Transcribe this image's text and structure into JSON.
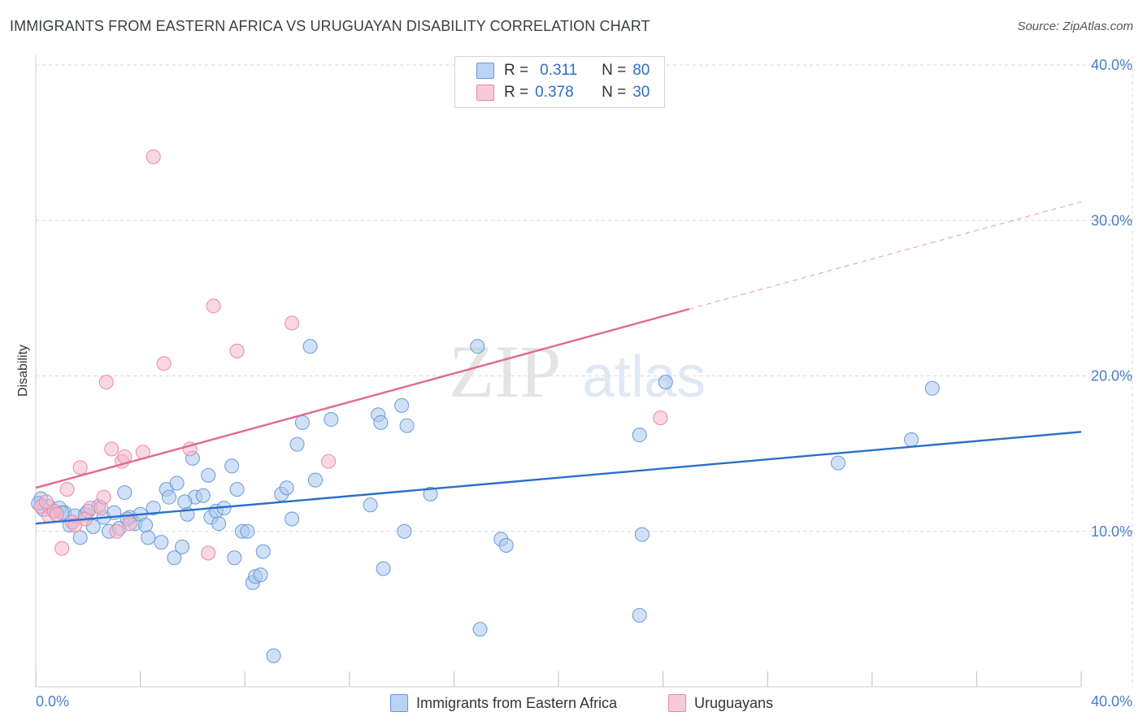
{
  "header": {
    "title": "IMMIGRANTS FROM EASTERN AFRICA VS URUGUAYAN DISABILITY CORRELATION CHART",
    "source": "Source: ZipAtlas.com"
  },
  "watermark": {
    "zip": "ZIP",
    "atlas": "atlas"
  },
  "legend": {
    "r_label": "R =",
    "n_label": "N =",
    "series": [
      {
        "r": "0.311",
        "n": "80"
      },
      {
        "r": "0.378",
        "n": "30"
      }
    ]
  },
  "bottom_legend": {
    "items": [
      "Immigrants from Eastern Africa",
      "Uruguayans"
    ]
  },
  "colors": {
    "blue_fill": "#a9c8f0",
    "blue_stroke": "#6a9ad8",
    "blue_line": "#2a6fcc",
    "pink_fill": "#f5b8ca",
    "pink_stroke": "#e888a6",
    "pink_line": "#e06a90",
    "tick_text": "#4a7fc8",
    "grid": "#d8d8d8"
  },
  "chart_data": {
    "type": "scatter",
    "title": "IMMIGRANTS FROM EASTERN AFRICA VS URUGUAYAN DISABILITY CORRELATION CHART",
    "xlabel": "",
    "ylabel": "Disability",
    "xlim": [
      0,
      40
    ],
    "ylim": [
      0,
      40
    ],
    "x_tick_labels": [
      "0.0%",
      "40.0%"
    ],
    "y_ticks": [
      10,
      20,
      30,
      40
    ],
    "y_tick_labels": [
      "10.0%",
      "20.0%",
      "30.0%",
      "40.0%"
    ],
    "series": [
      {
        "name": "Immigrants from Eastern Africa",
        "color": "blue",
        "r": 0.311,
        "n": 80,
        "trend": {
          "x": [
            0,
            40
          ],
          "y": [
            10.5,
            16.4
          ],
          "dashed_from": null
        },
        "points": [
          [
            0.2,
            12.1
          ],
          [
            0.5,
            11.6
          ],
          [
            0.7,
            11.3
          ],
          [
            0.9,
            11.5
          ],
          [
            1.1,
            11.2
          ],
          [
            1.3,
            10.4
          ],
          [
            1.5,
            11.0
          ],
          [
            1.7,
            9.6
          ],
          [
            1.9,
            11.1
          ],
          [
            2.2,
            10.3
          ],
          [
            2.4,
            11.6
          ],
          [
            2.6,
            10.9
          ],
          [
            2.8,
            10.0
          ],
          [
            3.0,
            11.2
          ],
          [
            3.2,
            10.2
          ],
          [
            3.4,
            12.5
          ],
          [
            3.6,
            10.9
          ],
          [
            3.8,
            10.5
          ],
          [
            4.0,
            11.1
          ],
          [
            4.2,
            10.4
          ],
          [
            4.3,
            9.6
          ],
          [
            4.5,
            11.5
          ],
          [
            4.8,
            9.3
          ],
          [
            5.0,
            12.7
          ],
          [
            5.1,
            12.2
          ],
          [
            5.3,
            8.3
          ],
          [
            5.4,
            13.1
          ],
          [
            5.6,
            9.0
          ],
          [
            5.8,
            11.1
          ],
          [
            6.0,
            14.7
          ],
          [
            6.1,
            12.2
          ],
          [
            6.4,
            12.3
          ],
          [
            6.6,
            13.6
          ],
          [
            6.7,
            10.9
          ],
          [
            6.9,
            11.3
          ],
          [
            7.0,
            10.5
          ],
          [
            7.2,
            11.5
          ],
          [
            7.5,
            14.2
          ],
          [
            7.6,
            8.3
          ],
          [
            7.7,
            12.7
          ],
          [
            7.9,
            10.0
          ],
          [
            8.1,
            10.0
          ],
          [
            8.3,
            6.7
          ],
          [
            8.4,
            7.1
          ],
          [
            8.6,
            7.2
          ],
          [
            8.7,
            8.7
          ],
          [
            9.1,
            2.0
          ],
          [
            9.4,
            12.4
          ],
          [
            9.6,
            12.8
          ],
          [
            9.8,
            10.8
          ],
          [
            10.0,
            15.6
          ],
          [
            10.2,
            17.0
          ],
          [
            10.5,
            21.9
          ],
          [
            10.7,
            13.3
          ],
          [
            11.3,
            17.2
          ],
          [
            12.8,
            11.7
          ],
          [
            13.1,
            17.5
          ],
          [
            13.3,
            7.6
          ],
          [
            13.2,
            17.0
          ],
          [
            14.0,
            18.1
          ],
          [
            14.2,
            16.8
          ],
          [
            14.1,
            10.0
          ],
          [
            15.1,
            12.4
          ],
          [
            17.0,
            3.7
          ],
          [
            16.9,
            21.9
          ],
          [
            17.8,
            9.5
          ],
          [
            18.0,
            9.1
          ],
          [
            23.1,
            16.2
          ],
          [
            23.2,
            9.8
          ],
          [
            23.1,
            4.6
          ],
          [
            24.1,
            19.6
          ],
          [
            30.7,
            14.4
          ],
          [
            33.5,
            15.9
          ],
          [
            34.3,
            19.2
          ],
          [
            0.3,
            11.4
          ],
          [
            1.0,
            11.2
          ],
          [
            2.0,
            11.3
          ],
          [
            3.5,
            10.8
          ],
          [
            5.7,
            11.9
          ],
          [
            0.1,
            11.8
          ]
        ]
      },
      {
        "name": "Uruguayans",
        "color": "pink",
        "r": 0.378,
        "n": 30,
        "trend": {
          "x": [
            0,
            40
          ],
          "y": [
            12.8,
            31.2
          ],
          "dashed_from": 25
        },
        "points": [
          [
            0.2,
            11.6
          ],
          [
            0.5,
            11.0
          ],
          [
            0.7,
            11.3
          ],
          [
            1.0,
            8.9
          ],
          [
            1.2,
            12.7
          ],
          [
            1.4,
            10.6
          ],
          [
            1.7,
            14.1
          ],
          [
            1.9,
            10.8
          ],
          [
            2.1,
            11.5
          ],
          [
            2.5,
            11.5
          ],
          [
            2.6,
            12.2
          ],
          [
            2.7,
            19.6
          ],
          [
            2.9,
            15.3
          ],
          [
            3.1,
            10.0
          ],
          [
            3.3,
            14.5
          ],
          [
            3.4,
            14.8
          ],
          [
            3.6,
            10.5
          ],
          [
            4.1,
            15.1
          ],
          [
            4.5,
            34.1
          ],
          [
            4.9,
            20.8
          ],
          [
            5.9,
            15.3
          ],
          [
            6.6,
            8.6
          ],
          [
            6.8,
            24.5
          ],
          [
            7.7,
            21.6
          ],
          [
            9.8,
            23.4
          ],
          [
            11.2,
            14.5
          ],
          [
            23.9,
            17.3
          ],
          [
            0.4,
            11.9
          ],
          [
            1.5,
            10.4
          ],
          [
            0.8,
            11.1
          ]
        ]
      }
    ]
  }
}
